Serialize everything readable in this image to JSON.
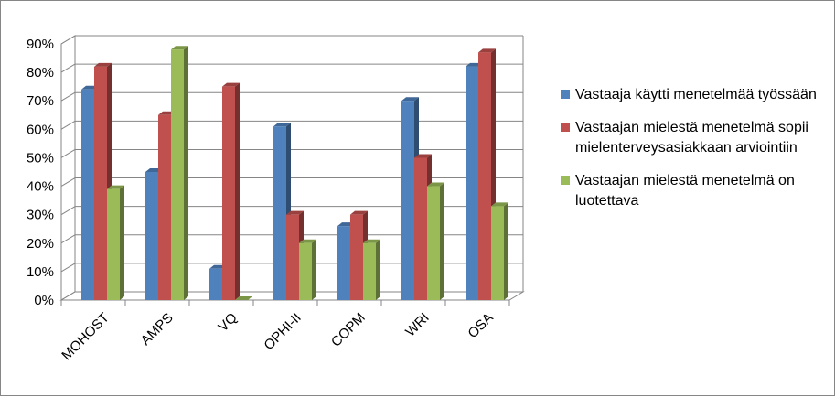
{
  "chart_data": {
    "type": "bar",
    "title": "",
    "xlabel": "",
    "ylabel": "",
    "ylim": [
      0,
      90
    ],
    "yticks": [
      "0%",
      "10%",
      "20%",
      "30%",
      "40%",
      "50%",
      "60%",
      "70%",
      "80%",
      "90%"
    ],
    "categories": [
      "MOHOST",
      "AMPS",
      "VQ",
      "OPHI-II",
      "COPM",
      "WRI",
      "OSA"
    ],
    "series": [
      {
        "name": "Vastaaja käytti menetelmää työssään",
        "color": "#4F81BD",
        "values": [
          74,
          45,
          11,
          61,
          26,
          70,
          82
        ]
      },
      {
        "name": "Vastaajan mielestä menetelmä sopii mielenterveysasiakkaan arviointiin",
        "color": "#C0504D",
        "values": [
          82,
          65,
          75,
          30,
          30,
          50,
          87
        ]
      },
      {
        "name": "Vastaajan mielestä menetelmä on luotettava",
        "color": "#9BBB59",
        "values": [
          39,
          88,
          0,
          20,
          20,
          40,
          33
        ]
      }
    ],
    "legend_position": "right",
    "grid": true,
    "style": "3d-clustered-column"
  },
  "legend": {
    "items": [
      {
        "label": "Vastaaja käytti menetelmää työssään"
      },
      {
        "label": "Vastaajan mielestä menetelmä sopii mielenterveysasiakkaan arviointiin"
      },
      {
        "label": "Vastaajan mielestä menetelmä on luotettava"
      }
    ]
  }
}
